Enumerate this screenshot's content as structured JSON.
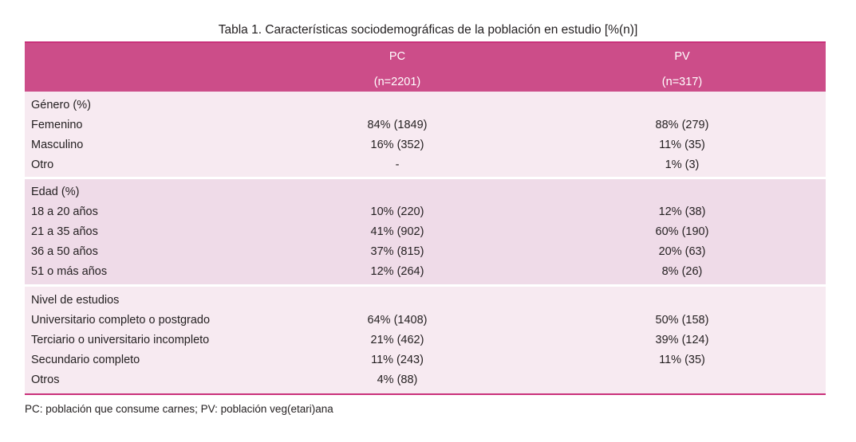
{
  "title": "Tabla 1. Características sociodemográficas de la población en estudio [%(n)]",
  "header": {
    "pc_label": "PC",
    "pc_n": "(n=2201)",
    "pv_label": "PV",
    "pv_n": "(n=317)"
  },
  "groups": [
    {
      "title": "Género (%)",
      "rows": [
        {
          "label": "Femenino",
          "pc": "84% (1849)",
          "pv": "88% (279)"
        },
        {
          "label": "Masculino",
          "pc": "16% (352)",
          "pv": "11% (35)"
        },
        {
          "label": "Otro",
          "pc": "-",
          "pv": "1% (3)"
        }
      ]
    },
    {
      "title": "Edad (%)",
      "rows": [
        {
          "label": "18 a 20 años",
          "pc": "10% (220)",
          "pv": "12% (38)"
        },
        {
          "label": "21 a 35 años",
          "pc": "41% (902)",
          "pv": "60% (190)"
        },
        {
          "label": "36 a 50 años",
          "pc": "37% (815)",
          "pv": "20% (63)"
        },
        {
          "label": "51 o más años",
          "pc": "12% (264)",
          "pv": "8% (26)"
        }
      ]
    },
    {
      "title": "Nivel de estudios",
      "rows": [
        {
          "label": "Universitario completo o postgrado",
          "pc": "64% (1408)",
          "pv": "50% (158)"
        },
        {
          "label": "Terciario o universitario incompleto",
          "pc": "21% (462)",
          "pv": "39% (124)"
        },
        {
          "label": "Secundario completo",
          "pc": "11% (243)",
          "pv": "11% (35)"
        },
        {
          "label": "Otros",
          "pc": "4% (88)",
          "pv": ""
        }
      ]
    }
  ],
  "footnote": "PC: población que consume carnes; PV: población veg(etari)ana",
  "colors": {
    "header_bg": "#cc4d89",
    "rule": "#c9307a",
    "band_light": "#f7eaf1",
    "band_dark": "#efdbe8"
  }
}
